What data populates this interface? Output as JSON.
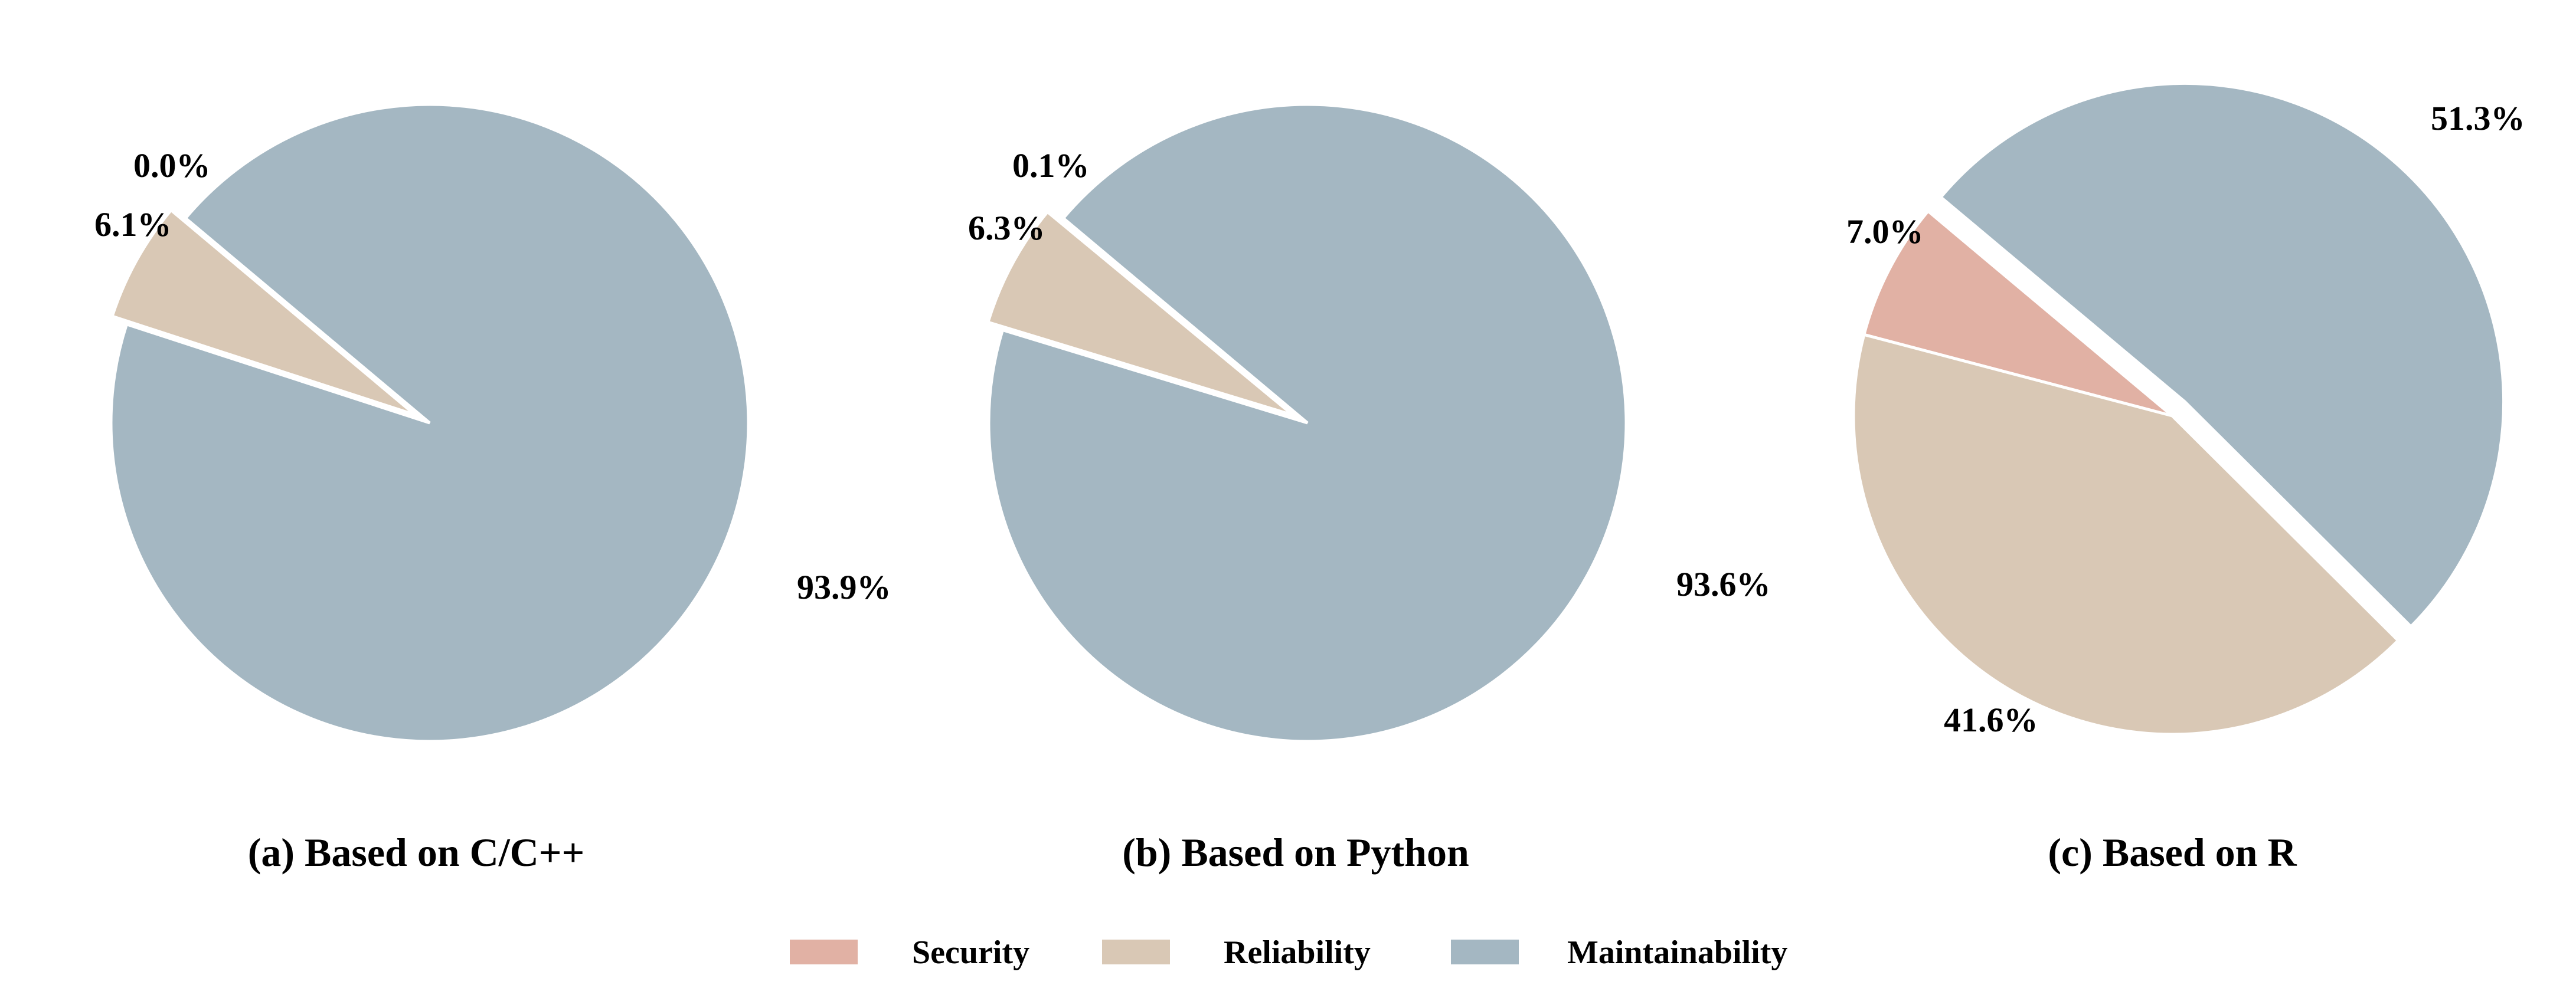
{
  "chart_data": [
    {
      "type": "pie",
      "caption": "(a) Based on C/C++",
      "slices": [
        {
          "name": "Security",
          "value": 0.0,
          "label": "0.0%",
          "color": "#e1b1a4",
          "explode": false
        },
        {
          "name": "Reliability",
          "value": 6.1,
          "label": "6.1%",
          "color": "#d9c8b5",
          "explode": true
        },
        {
          "name": "Maintainability",
          "value": 93.9,
          "label": "93.9%",
          "color": "#a4b7c2",
          "explode": false
        }
      ]
    },
    {
      "type": "pie",
      "caption": "(b) Based on Python",
      "slices": [
        {
          "name": "Security",
          "value": 0.1,
          "label": "0.1%",
          "color": "#e1b1a4",
          "explode": false
        },
        {
          "name": "Reliability",
          "value": 6.3,
          "label": "6.3%",
          "color": "#d9c8b5",
          "explode": true
        },
        {
          "name": "Maintainability",
          "value": 93.6,
          "label": "93.6%",
          "color": "#a4b7c2",
          "explode": false
        }
      ]
    },
    {
      "type": "pie",
      "caption": "(c) Based on R",
      "slices": [
        {
          "name": "Security",
          "value": 7.0,
          "label": "7.0%",
          "color": "#e1b1a4",
          "explode": false
        },
        {
          "name": "Reliability",
          "value": 41.6,
          "label": "41.6%",
          "color": "#d9c8b5",
          "explode": false
        },
        {
          "name": "Maintainability",
          "value": 51.3,
          "label": "51.3%",
          "color": "#a4b7c2",
          "explode": true
        }
      ]
    }
  ],
  "legend": {
    "placement": "bottom-center",
    "items": [
      {
        "label": "Security",
        "color": "#e1b1a4"
      },
      {
        "label": "Reliability",
        "color": "#d9c8b5"
      },
      {
        "label": "Maintainability",
        "color": "#a4b7c2"
      }
    ]
  }
}
